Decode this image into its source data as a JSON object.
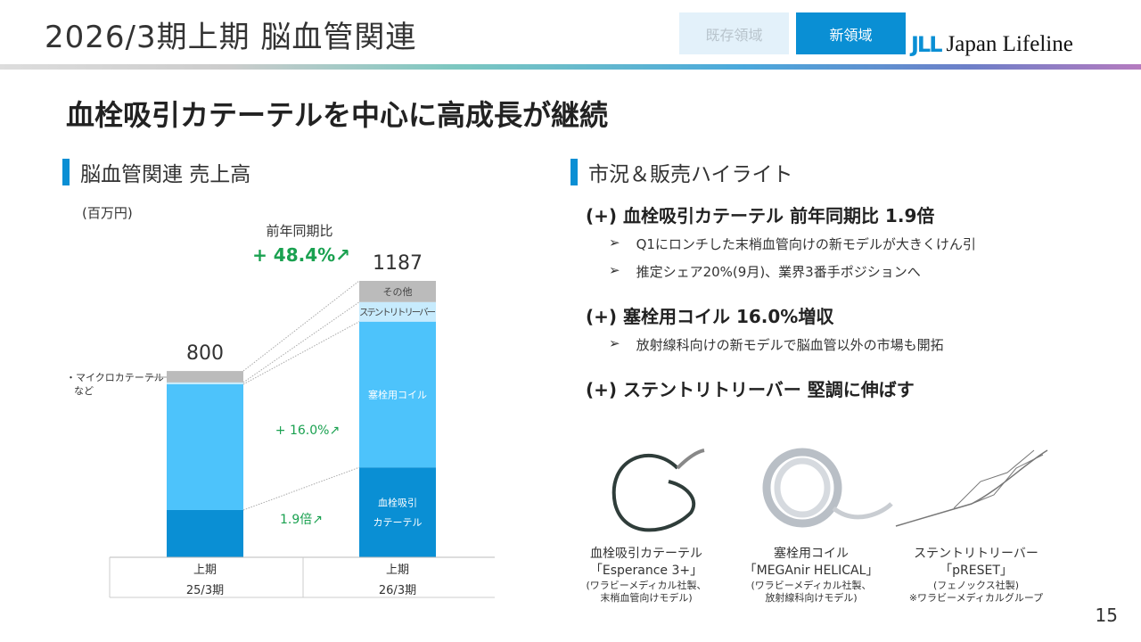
{
  "header": {
    "title": "2026/3期上期 脳血管関連",
    "tab_existing": "既存領域",
    "tab_new": "新領域",
    "logo_mark": "JLL",
    "logo_text": "Japan Lifeline"
  },
  "headline": "血栓吸引カテーテルを中心に高成長が継続",
  "section_sales": "脳血管関連 売上高",
  "section_highlights": "市況＆販売ハイライト",
  "unit": "(百万円)",
  "chart_data": {
    "type": "bar",
    "stacked": true,
    "title": "脳血管関連 売上高",
    "ylabel": "(百万円)",
    "categories": [
      [
        "上期",
        "25/3期"
      ],
      [
        "上期",
        "26/3期"
      ]
    ],
    "totals": [
      800,
      1187
    ],
    "series": [
      {
        "name": "血栓吸引カテーテル",
        "label": [
          "血栓吸引",
          "カテーテル"
        ],
        "color": "#0a8fd4",
        "values": [
          203,
          386
        ]
      },
      {
        "name": "塞栓用コイル",
        "label": [
          "塞栓用コイル"
        ],
        "color": "#4dc3fb",
        "values": [
          540,
          626
        ]
      },
      {
        "name": "ステントリトリーバー",
        "label": [
          "ステントリトリーバー"
        ],
        "color": "#c7ebfd",
        "values": [
          8,
          84
        ]
      },
      {
        "name": "その他",
        "label": [
          "その他"
        ],
        "color": "#bbbbbb",
        "values": [
          49,
          91
        ]
      }
    ],
    "annotations": {
      "yoy_label": "前年同期比",
      "yoy_total": "+ 48.4%↗",
      "coil_growth": "+ 16.0%↗",
      "catheter_growth": "1.9倍↗",
      "other_note_1": "・マイクロカテーテル",
      "other_note_2": "など"
    },
    "ylim": [
      0,
      1187
    ]
  },
  "highlights": [
    {
      "head": "(+) 血栓吸引カテーテル 前年同期比 1.9倍",
      "bullets": [
        "Q1にロンチした末梢血管向けの新モデルが大きくけん引",
        "推定シェア20%(9月)、業界3番手ポジションへ"
      ]
    },
    {
      "head": "(+) 塞栓用コイル 16.0%増収",
      "bullets": [
        "放射線科向けの新モデルで脳血管以外の市場も開拓"
      ]
    },
    {
      "head": "(+) ステントリトリーバー 堅調に伸ばす",
      "bullets": []
    }
  ],
  "bullet_symbol": "➢",
  "products": [
    {
      "name": "血栓吸引カテーテル",
      "model": "「Esperance 3+」",
      "notes": [
        "(ワラビーメディカル社製、",
        "末梢血管向けモデル)"
      ]
    },
    {
      "name": "塞栓用コイル",
      "model": "「MEGAnir HELICAL」",
      "notes": [
        "(ワラビーメディカル社製、",
        "放射線科向けモデル)"
      ]
    },
    {
      "name": "ステントリトリーバー",
      "model": "「pRESET」",
      "notes": [
        "(フェノックス社製)",
        "※ワラビーメディカルグループ"
      ]
    }
  ],
  "page_number": "15"
}
